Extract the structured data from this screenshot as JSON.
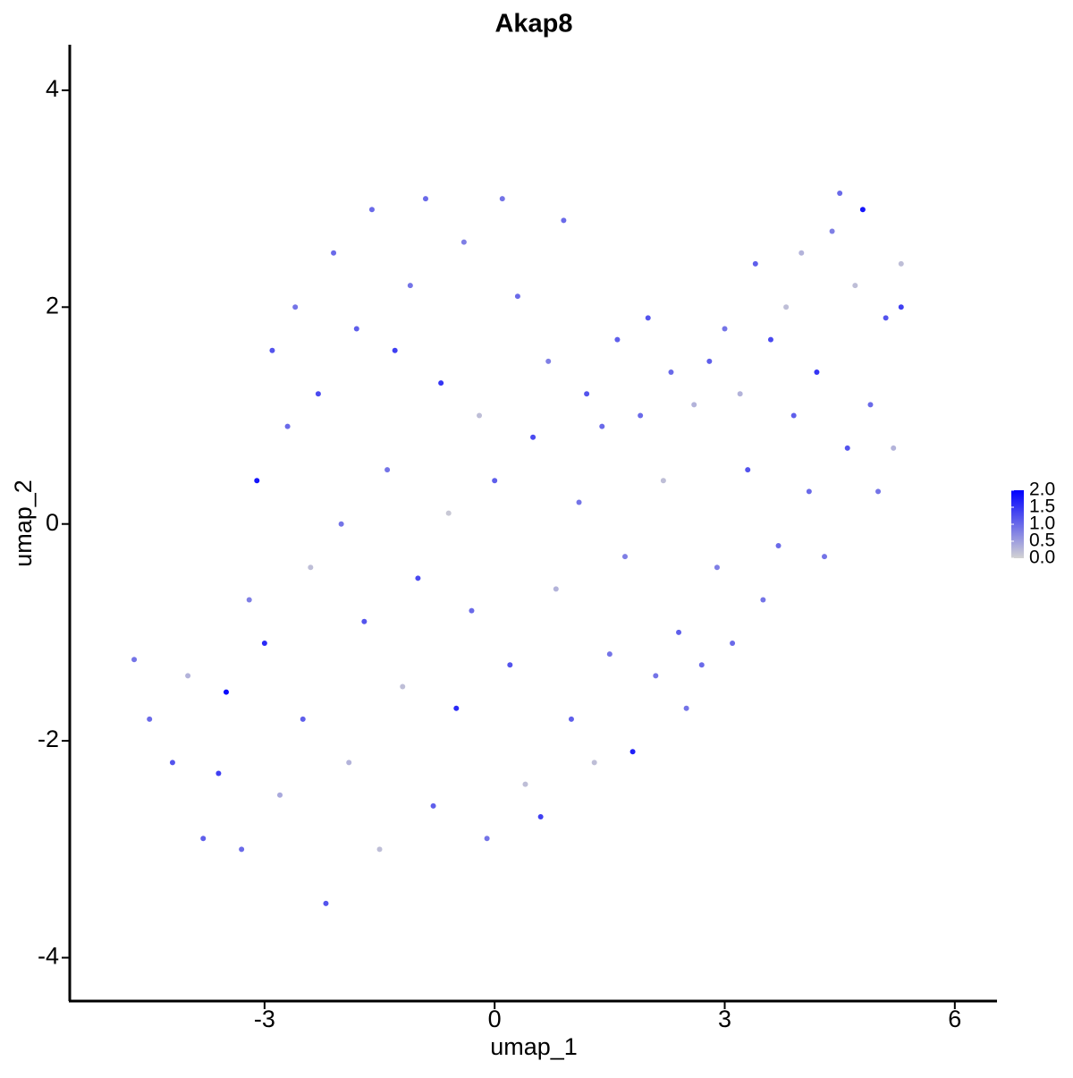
{
  "chart_data": {
    "type": "scatter",
    "title": "Akap8",
    "x_label": "umap_1",
    "y_label": "umap_2",
    "xlim": [
      -5.54,
      6.55
    ],
    "ylim": [
      -4.4,
      4.42
    ],
    "xticks": [
      -3,
      0,
      3,
      6
    ],
    "yticks": [
      -4,
      -2,
      0,
      2,
      4
    ],
    "low_color": "#d3d3d3",
    "high_color": "#0000ff",
    "color_lim": [
      0,
      2
    ],
    "color_ticks": [
      {
        "value": 0,
        "label": "0.0"
      },
      0.5,
      {
        "value": 1,
        "label": "1.0"
      },
      1.5,
      {
        "value": 2,
        "label": "2.0"
      }
    ],
    "x": [
      -4.7,
      -4.5,
      -4.2,
      -4.0,
      -3.8,
      -3.6,
      -3.5,
      -3.3,
      -3.2,
      -3.1,
      -3.0,
      -2.9,
      -2.8,
      -2.7,
      -2.6,
      -2.5,
      -2.4,
      -2.3,
      -2.2,
      -2.1,
      -2.0,
      -1.9,
      -1.8,
      -1.7,
      -1.6,
      -1.5,
      -1.4,
      -1.3,
      -1.2,
      -1.1,
      -1.0,
      -0.9,
      -0.8,
      -0.7,
      -0.6,
      -0.5,
      -0.4,
      -0.3,
      -0.2,
      -0.1,
      0.0,
      0.1,
      0.2,
      0.3,
      0.4,
      0.5,
      0.6,
      0.7,
      0.8,
      0.9,
      1.0,
      1.1,
      1.2,
      1.3,
      1.4,
      1.5,
      1.6,
      1.7,
      1.8,
      1.9,
      2.0,
      2.1,
      2.2,
      2.3,
      2.4,
      2.5,
      2.6,
      2.7,
      2.8,
      2.9,
      3.0,
      3.1,
      3.2,
      3.3,
      3.4,
      3.5,
      3.6,
      3.7,
      3.8,
      3.9,
      4.0,
      4.1,
      4.2,
      4.3,
      4.4,
      4.5,
      4.6,
      4.7,
      4.8,
      4.9,
      5.0,
      5.1,
      5.2,
      5.3,
      5.3
    ],
    "y": [
      -1.25,
      -1.8,
      -2.2,
      -1.4,
      -2.9,
      -2.3,
      -1.55,
      -3.0,
      -0.7,
      0.4,
      -1.1,
      1.6,
      -2.5,
      0.9,
      2.0,
      -1.8,
      -0.4,
      1.2,
      -3.5,
      2.5,
      0.0,
      -2.2,
      1.8,
      -0.9,
      2.9,
      -3.0,
      0.5,
      1.6,
      -1.5,
      2.2,
      -0.5,
      3.0,
      -2.6,
      1.3,
      0.1,
      -1.7,
      2.6,
      -0.8,
      1.0,
      -2.9,
      0.4,
      3.0,
      -1.3,
      2.1,
      -2.4,
      0.8,
      -2.7,
      1.5,
      -0.6,
      2.8,
      -1.8,
      0.2,
      1.2,
      -2.2,
      0.9,
      -1.2,
      1.7,
      -0.3,
      -2.1,
      1.0,
      1.9,
      -1.4,
      0.4,
      1.4,
      -1.0,
      -1.7,
      1.1,
      -1.3,
      1.5,
      -0.4,
      1.8,
      -1.1,
      1.2,
      0.5,
      2.4,
      -0.7,
      1.7,
      -0.2,
      2.0,
      1.0,
      2.5,
      0.3,
      1.4,
      -0.3,
      2.7,
      3.05,
      0.7,
      2.2,
      2.9,
      1.1,
      0.3,
      1.9,
      0.7,
      2.0,
      2.4
    ],
    "values": [
      0.9,
      1.0,
      1.2,
      0.3,
      1.1,
      1.4,
      1.9,
      1.0,
      0.8,
      1.8,
      1.6,
      1.2,
      0.4,
      1.0,
      0.9,
      1.1,
      0.2,
      1.3,
      1.2,
      1.0,
      0.9,
      0.3,
      1.1,
      1.2,
      1.0,
      0.2,
      0.9,
      1.4,
      0.2,
      0.9,
      1.3,
      1.0,
      1.1,
      1.5,
      0.1,
      1.6,
      0.8,
      1.0,
      0.2,
      0.9,
      1.1,
      0.9,
      1.2,
      1.0,
      0.2,
      1.3,
      1.4,
      0.8,
      0.3,
      1.0,
      1.1,
      0.9,
      1.2,
      0.2,
      1.0,
      0.9,
      1.1,
      0.8,
      1.7,
      1.0,
      1.2,
      0.9,
      0.2,
      1.0,
      1.1,
      0.9,
      0.3,
      1.0,
      1.1,
      0.8,
      0.9,
      1.0,
      0.3,
      1.2,
      1.1,
      0.9,
      1.3,
      1.0,
      0.2,
      1.1,
      0.3,
      1.0,
      1.5,
      0.9,
      0.8,
      1.0,
      1.2,
      0.2,
      1.8,
      1.0,
      0.9,
      1.2,
      0.3,
      1.4,
      0.2
    ]
  }
}
